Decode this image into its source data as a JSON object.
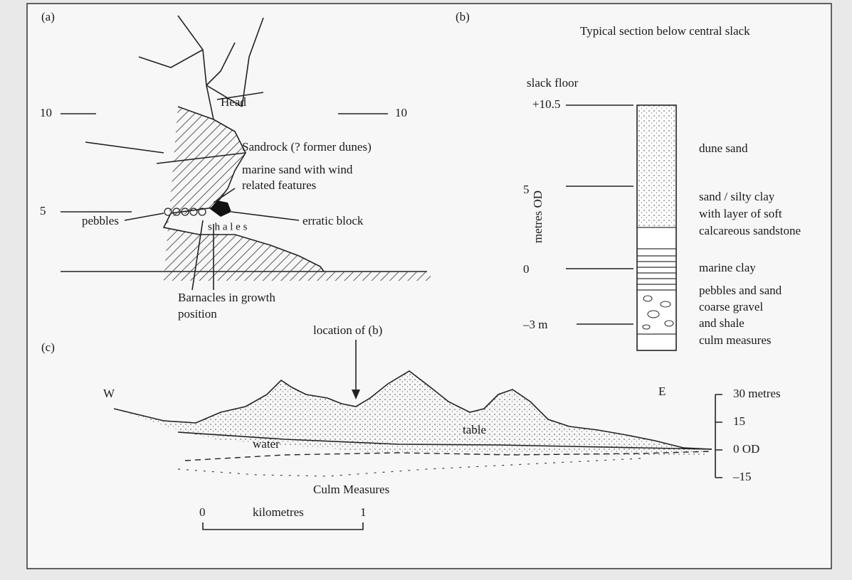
{
  "panel_a": {
    "label": "(a)",
    "left_10": "10",
    "right_10": "10",
    "head": "Head",
    "sandrock": "Sandrock (? former dunes)",
    "marine_sand_1": "marine sand with wind",
    "marine_sand_2": "related features",
    "left_5": "5",
    "pebbles": "pebbles",
    "erratic_block": "erratic block",
    "shales": "s h a l e s",
    "barnacles_1": "Barnacles in growth",
    "barnacles_2": "position"
  },
  "panel_b": {
    "label": "(b)",
    "title": "Typical section below central slack",
    "slack_floor": "slack floor",
    "axis_label": "metres OD",
    "ticks": [
      "+10.5",
      "5",
      "0",
      "–3 m"
    ],
    "layers": [
      "dune sand",
      "sand / silty clay",
      "with layer of soft",
      "calcareous sandstone",
      "marine clay",
      "pebbles and sand",
      "coarse gravel",
      "and shale",
      "culm measures"
    ]
  },
  "panel_c": {
    "label": "(c)",
    "location": "location of (b)",
    "west": "W",
    "east": "E",
    "scale_ticks": [
      "30 metres",
      "15",
      "0  OD",
      "–15"
    ],
    "water": "water",
    "table": "table",
    "culm": "Culm Measures",
    "km_0": "0",
    "km_label": "kilometres",
    "km_1": "1"
  }
}
